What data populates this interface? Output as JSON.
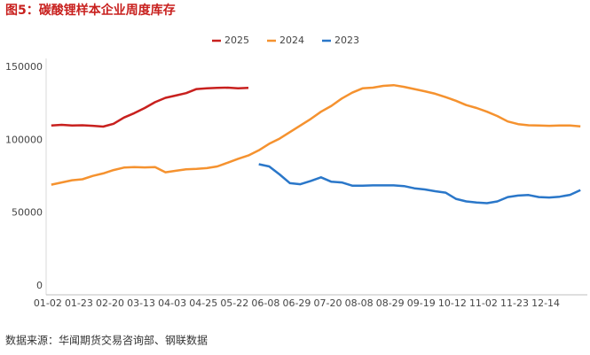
{
  "chart_data": {
    "type": "line",
    "title": "图5：碳酸锂样本企业周度库存",
    "source": "数据来源：华闻期货交易咨询部、钢联数据",
    "categories": [
      "01-02",
      null,
      null,
      "01-23",
      null,
      null,
      "02-20",
      null,
      null,
      "03-13",
      null,
      null,
      "04-03",
      null,
      null,
      "04-25",
      null,
      null,
      "05-22",
      null,
      null,
      "06-08",
      null,
      null,
      "06-29",
      null,
      null,
      "07-20",
      null,
      null,
      "08-08",
      null,
      null,
      "08-29",
      null,
      null,
      "09-19",
      null,
      null,
      "10-12",
      null,
      null,
      "11-02",
      null,
      null,
      "11-23",
      null,
      null,
      "12-14",
      null,
      null,
      null
    ],
    "series": [
      {
        "name": "2025",
        "color": "#c8201e",
        "values": [
          110000,
          110500,
          110000,
          110200,
          109800,
          109300,
          111200,
          115500,
          118500,
          122000,
          126000,
          129000,
          130600,
          132200,
          135000,
          135500,
          135800,
          136000,
          135500,
          135800,
          null,
          null,
          null,
          null,
          null,
          null,
          null,
          null,
          null,
          null,
          null,
          null,
          null,
          null,
          null,
          null,
          null,
          null,
          null,
          null,
          null,
          null,
          null,
          null,
          null,
          null,
          null,
          null,
          null,
          null,
          null,
          null
        ]
      },
      {
        "name": "2024",
        "color": "#f5922f",
        "values": [
          69500,
          71000,
          72500,
          73200,
          75500,
          77200,
          79500,
          81200,
          81500,
          81300,
          81500,
          78000,
          79000,
          80000,
          80300,
          80800,
          82000,
          84500,
          87200,
          89500,
          93000,
          97500,
          101000,
          105500,
          110000,
          114500,
          119500,
          123500,
          128500,
          132500,
          135500,
          136000,
          137200,
          137700,
          136500,
          135000,
          133500,
          131800,
          129500,
          127000,
          124000,
          122000,
          119500,
          116500,
          112800,
          111000,
          110200,
          110000,
          109800,
          110000,
          110000,
          109400
        ]
      },
      {
        "name": "2023",
        "color": "#2a77c9",
        "values": [
          null,
          null,
          null,
          null,
          null,
          null,
          null,
          null,
          null,
          null,
          null,
          null,
          null,
          null,
          null,
          null,
          null,
          null,
          null,
          null,
          83500,
          82000,
          76500,
          70500,
          69800,
          72000,
          74500,
          71500,
          71000,
          68800,
          68800,
          69000,
          69000,
          69000,
          68500,
          67000,
          66200,
          65000,
          64000,
          59800,
          58000,
          57200,
          56800,
          58000,
          61000,
          62000,
          62400,
          61000,
          60700,
          61200,
          62500,
          65800
        ]
      }
    ],
    "ylim": [
      -6000,
      156000
    ],
    "yticks": [
      0,
      50000,
      100000,
      150000
    ],
    "grid": false
  }
}
